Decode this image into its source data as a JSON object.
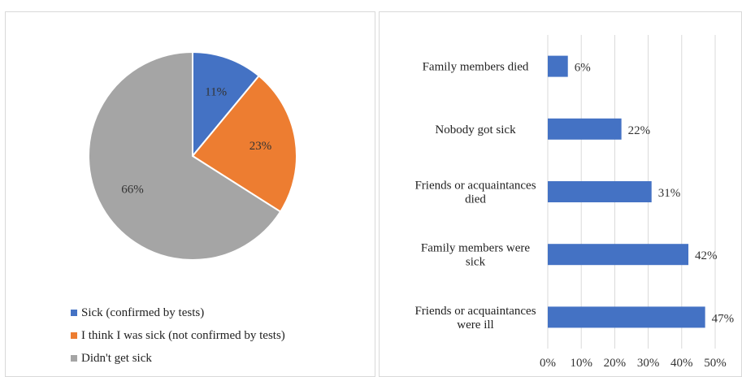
{
  "chart_data": [
    {
      "type": "pie",
      "slices": [
        {
          "label": "Sick (confirmed by tests)",
          "value": 11,
          "value_label": "11%",
          "color": "#4472c4"
        },
        {
          "label": "I think I was sick (not confirmed by tests)",
          "value": 23,
          "value_label": "23%",
          "color": "#ed7d31"
        },
        {
          "label": "Didn't get sick",
          "value": 66,
          "value_label": "66%",
          "color": "#a5a5a5"
        }
      ],
      "legend_position": "bottom"
    },
    {
      "type": "bar",
      "orientation": "horizontal",
      "categories": [
        "Family members died",
        "Nobody got sick",
        "Friends or acquaintances died",
        "Family members were sick",
        "Friends or acquaintances were ill"
      ],
      "category_lines": [
        [
          "Family members died"
        ],
        [
          "Nobody got sick"
        ],
        [
          "Friends or acquaintances",
          "died"
        ],
        [
          "Family members were",
          "sick"
        ],
        [
          "Friends or acquaintances",
          "were ill"
        ]
      ],
      "values": [
        6,
        22,
        31,
        42,
        47
      ],
      "value_labels": [
        "6%",
        "22%",
        "31%",
        "42%",
        "47%"
      ],
      "xlim": [
        0,
        50
      ],
      "xticks": [
        "0%",
        "10%",
        "20%",
        "30%",
        "40%",
        "50%"
      ],
      "grid": true,
      "color": "#4472c4"
    }
  ]
}
